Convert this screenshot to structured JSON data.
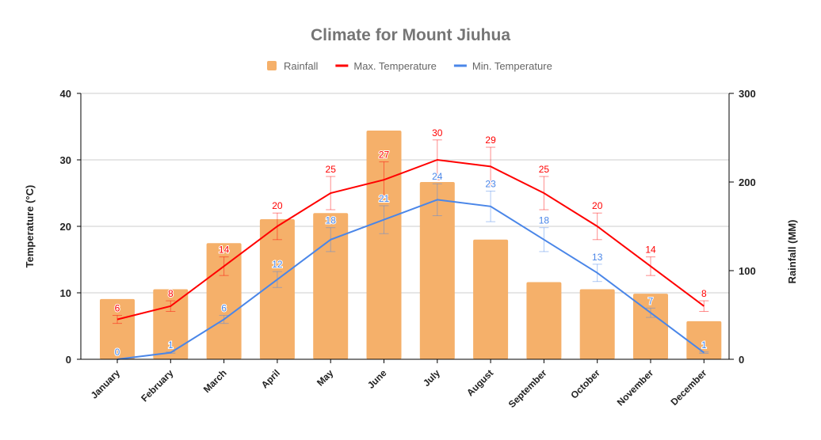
{
  "chart_data": {
    "type": "bar+line",
    "title": "Climate for Mount Jiuhua",
    "legend_position": "top",
    "categories": [
      "January",
      "February",
      "March",
      "April",
      "May",
      "June",
      "July",
      "August",
      "September",
      "October",
      "November",
      "December"
    ],
    "series": [
      {
        "name": "Rainfall",
        "type": "bar",
        "axis": "right",
        "color": "#f5b06a",
        "values": [
          68,
          79,
          131,
          158,
          165,
          258,
          200,
          135,
          87,
          79,
          74,
          43
        ]
      },
      {
        "name": "Max. Temperature",
        "type": "line",
        "axis": "left",
        "color": "#ff0000",
        "error_percent": 10,
        "values": [
          6,
          8,
          14,
          20,
          25,
          27,
          30,
          29,
          25,
          20,
          14,
          8
        ]
      },
      {
        "name": "Min. Temperature",
        "type": "line",
        "axis": "left",
        "color": "#4a86e8",
        "error_percent": 10,
        "values": [
          0,
          1,
          6,
          12,
          18,
          21,
          24,
          23,
          18,
          13,
          7,
          1
        ]
      }
    ],
    "ylabel": "Temperature (°C)",
    "ylim": [
      0,
      40
    ],
    "yticks": [
      "0",
      "10",
      "20",
      "30",
      "40"
    ],
    "y2label": "Rainfall (MM)",
    "y2lim": [
      0,
      300
    ],
    "y2ticks": [
      "0",
      "100",
      "200",
      "300"
    ],
    "grid": true
  }
}
